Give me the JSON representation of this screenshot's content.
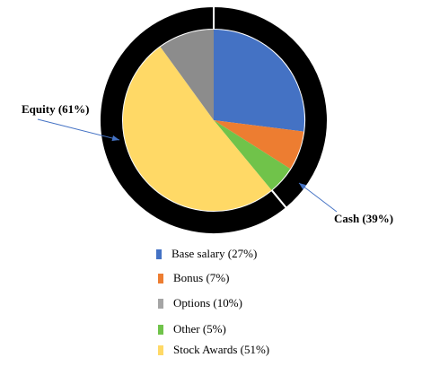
{
  "chart_data": {
    "type": "pie",
    "inner": {
      "slices": [
        {
          "label": "Base salary (27%)",
          "value": 27,
          "color": "#4472C4"
        },
        {
          "label": "Bonus (7%)",
          "value": 7,
          "color": "#ED7D31"
        },
        {
          "label": "Other (5%)",
          "value": 5,
          "color": "#70C34A"
        },
        {
          "label": "Stock Awards (51%)",
          "value": 51,
          "color": "#FFD966"
        },
        {
          "label": "Options (10%)",
          "value": 10,
          "color": "#8C8C8C"
        }
      ]
    },
    "outer_ring": {
      "segments": [
        {
          "label": "Cash (39%)",
          "value": 39,
          "color": "#000000"
        },
        {
          "label": "Equity (61%)",
          "value": 61,
          "color": "#000000"
        }
      ]
    },
    "legend": [
      {
        "label": "Base salary (27%)",
        "color": "#4472C4"
      },
      {
        "label": "Bonus (7%)",
        "color": "#ED7D31"
      },
      {
        "label": "Options (10%)",
        "color": "#A5A5A5"
      },
      {
        "label": "Other (5%)",
        "color": "#70C34A"
      },
      {
        "label": "Stock Awards (51%)",
        "color": "#FFD966"
      }
    ],
    "legend_placement": "bottom",
    "annotation_color": "#4472C4"
  }
}
